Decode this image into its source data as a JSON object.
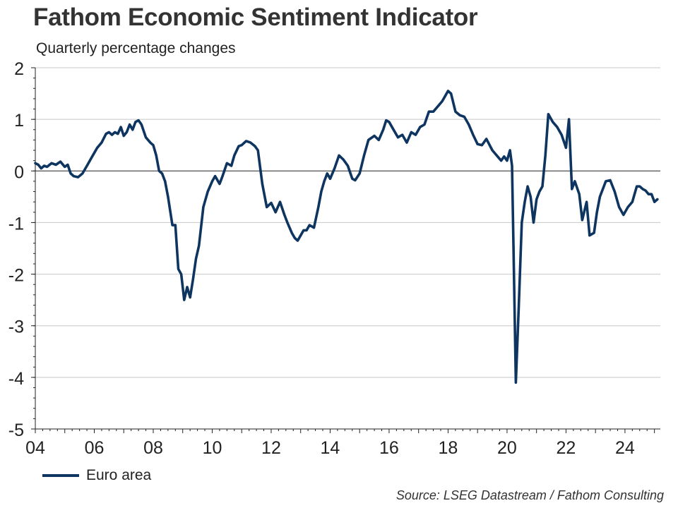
{
  "title": "Fathom Economic Sentiment Indicator",
  "subtitle": "Quarterly percentage changes",
  "source": "Source: LSEG Datastream / Fathom Consulting",
  "colors": {
    "series": "#0e3560",
    "grid": "#c8c8c8",
    "axis": "#222222"
  },
  "chart_data": {
    "type": "line",
    "title": "Fathom Economic Sentiment Indicator",
    "subtitle": "Quarterly percentage changes",
    "xlabel": "",
    "ylabel": "",
    "xlim": [
      2004,
      2025.2
    ],
    "ylim": [
      -5,
      2
    ],
    "yticks": [
      2,
      1,
      0,
      -1,
      -2,
      -3,
      -4,
      -5
    ],
    "ytick_labels": [
      "2",
      "1",
      "0",
      "-1",
      "-2",
      "-3",
      "-4",
      "-5"
    ],
    "xticks": [
      2004,
      2006,
      2008,
      2010,
      2012,
      2014,
      2016,
      2018,
      2020,
      2022,
      2024
    ],
    "xtick_labels": [
      "04",
      "06",
      "08",
      "10",
      "12",
      "14",
      "16",
      "18",
      "20",
      "22",
      "24"
    ],
    "grid": true,
    "legend": {
      "position": "bottom-left",
      "label": "Euro area"
    },
    "series": [
      {
        "name": "Euro area",
        "x": [
          2004.0,
          2004.1,
          2004.2,
          2004.3,
          2004.4,
          2004.55,
          2004.7,
          2004.85,
          2005.0,
          2005.1,
          2005.2,
          2005.3,
          2005.45,
          2005.6,
          2005.75,
          2005.9,
          2006.0,
          2006.1,
          2006.25,
          2006.4,
          2006.5,
          2006.6,
          2006.7,
          2006.8,
          2006.9,
          2007.0,
          2007.1,
          2007.2,
          2007.3,
          2007.4,
          2007.5,
          2007.6,
          2007.75,
          2007.9,
          2008.0,
          2008.1,
          2008.2,
          2008.3,
          2008.4,
          2008.5,
          2008.65,
          2008.75,
          2008.85,
          2008.95,
          2009.05,
          2009.15,
          2009.25,
          2009.35,
          2009.45,
          2009.55,
          2009.7,
          2009.85,
          2010.0,
          2010.1,
          2010.25,
          2010.35,
          2010.5,
          2010.65,
          2010.75,
          2010.9,
          2011.0,
          2011.15,
          2011.3,
          2011.45,
          2011.55,
          2011.7,
          2011.85,
          2012.0,
          2012.15,
          2012.3,
          2012.45,
          2012.55,
          2012.7,
          2012.8,
          2012.9,
          2013.0,
          2013.1,
          2013.2,
          2013.3,
          2013.45,
          2013.6,
          2013.7,
          2013.8,
          2013.9,
          2014.0,
          2014.15,
          2014.3,
          2014.45,
          2014.6,
          2014.75,
          2014.85,
          2015.0,
          2015.15,
          2015.3,
          2015.5,
          2015.65,
          2015.8,
          2015.9,
          2016.0,
          2016.15,
          2016.3,
          2016.45,
          2016.6,
          2016.75,
          2016.9,
          2017.05,
          2017.2,
          2017.35,
          2017.5,
          2017.65,
          2017.8,
          2017.9,
          2018.0,
          2018.1,
          2018.25,
          2018.4,
          2018.55,
          2018.7,
          2018.85,
          2019.0,
          2019.15,
          2019.3,
          2019.5,
          2019.65,
          2019.8,
          2019.9,
          2020.0,
          2020.1,
          2020.17,
          2020.22,
          2020.3,
          2020.4,
          2020.5,
          2020.6,
          2020.7,
          2020.8,
          2020.9,
          2021.0,
          2021.1,
          2021.2,
          2021.3,
          2021.4,
          2021.55,
          2021.7,
          2021.85,
          2022.0,
          2022.1,
          2022.2,
          2022.3,
          2022.45,
          2022.55,
          2022.7,
          2022.8,
          2022.95,
          2023.05,
          2023.15,
          2023.25,
          2023.35,
          2023.5,
          2023.65,
          2023.8,
          2023.95,
          2024.1,
          2024.25,
          2024.4,
          2024.5,
          2024.6,
          2024.7,
          2024.8,
          2024.9,
          2025.0,
          2025.1
        ],
        "y": [
          0.15,
          0.12,
          0.05,
          0.1,
          0.08,
          0.15,
          0.12,
          0.18,
          0.08,
          0.12,
          -0.05,
          -0.1,
          -0.12,
          -0.05,
          0.1,
          0.25,
          0.35,
          0.45,
          0.55,
          0.72,
          0.75,
          0.7,
          0.75,
          0.72,
          0.85,
          0.68,
          0.75,
          0.9,
          0.8,
          0.95,
          0.98,
          0.9,
          0.65,
          0.55,
          0.5,
          0.3,
          0.0,
          -0.05,
          -0.2,
          -0.5,
          -1.05,
          -1.05,
          -1.9,
          -2.0,
          -2.5,
          -2.25,
          -2.45,
          -2.1,
          -1.7,
          -1.45,
          -0.7,
          -0.4,
          -0.2,
          -0.1,
          -0.25,
          -0.1,
          0.15,
          0.1,
          0.3,
          0.48,
          0.5,
          0.58,
          0.55,
          0.48,
          0.4,
          -0.25,
          -0.7,
          -0.62,
          -0.8,
          -0.6,
          -0.85,
          -1.0,
          -1.2,
          -1.3,
          -1.35,
          -1.25,
          -1.15,
          -1.15,
          -1.05,
          -1.1,
          -0.7,
          -0.4,
          -0.2,
          -0.05,
          -0.15,
          0.05,
          0.3,
          0.22,
          0.1,
          -0.15,
          -0.18,
          -0.05,
          0.3,
          0.6,
          0.68,
          0.6,
          0.8,
          0.98,
          0.95,
          0.8,
          0.65,
          0.7,
          0.55,
          0.75,
          0.7,
          0.85,
          0.9,
          1.15,
          1.15,
          1.25,
          1.35,
          1.45,
          1.55,
          1.5,
          1.15,
          1.08,
          1.05,
          0.9,
          0.7,
          0.52,
          0.5,
          0.62,
          0.4,
          0.3,
          0.2,
          0.28,
          0.2,
          0.4,
          0.1,
          -1.5,
          -4.1,
          -2.6,
          -1.0,
          -0.6,
          -0.3,
          -0.5,
          -1.0,
          -0.55,
          -0.4,
          -0.3,
          0.3,
          1.1,
          0.95,
          0.85,
          0.7,
          0.45,
          1.0,
          -0.35,
          -0.2,
          -0.45,
          -0.95,
          -0.6,
          -1.25,
          -1.2,
          -0.8,
          -0.5,
          -0.35,
          -0.2,
          -0.18,
          -0.4,
          -0.7,
          -0.85,
          -0.7,
          -0.6,
          -0.3,
          -0.3,
          -0.35,
          -0.38,
          -0.45,
          -0.45,
          -0.6,
          -0.55
        ]
      }
    ]
  }
}
